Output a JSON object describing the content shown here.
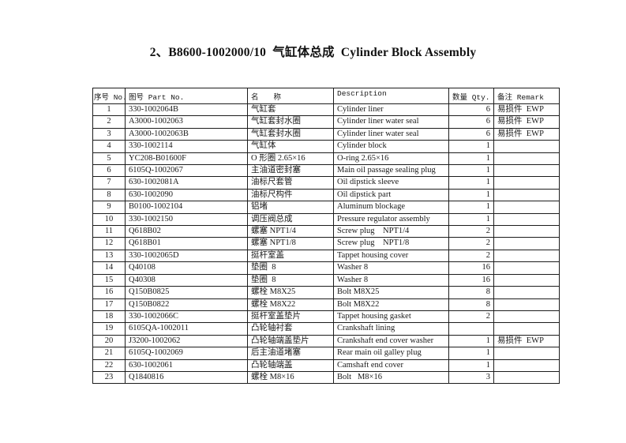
{
  "page": {
    "title": "2、B8600-1002000/10  气缸体总成  Cylinder Block Assembly"
  },
  "table": {
    "headers": {
      "no": "序号 No.",
      "part_no": "图号 Part No.",
      "name": "名　　称",
      "description": "Description",
      "qty": "数量 Qty.",
      "remark": "备注 Remark"
    },
    "rows": [
      {
        "no": "1",
        "part_no": "330-1002064B",
        "name": "气缸套",
        "description": "Cylinder liner",
        "qty": "6",
        "remark": "易损件  EWP"
      },
      {
        "no": "2",
        "part_no": "A3000-1002063",
        "name": "气缸套封水圈",
        "description": "Cylinder liner water seal",
        "qty": "6",
        "remark": "易损件  EWP"
      },
      {
        "no": "3",
        "part_no": "A3000-1002063B",
        "name": "气缸套封水圈",
        "description": "Cylinder liner water seal",
        "qty": "6",
        "remark": "易损件  EWP"
      },
      {
        "no": "4",
        "part_no": "330-1002114",
        "name": "气缸体",
        "description": "Cylinder block",
        "qty": "1",
        "remark": ""
      },
      {
        "no": "5",
        "part_no": "YC208-B01600F",
        "name": "O 形圈 2.65×16",
        "description": "O-ring 2.65×16",
        "qty": "1",
        "remark": ""
      },
      {
        "no": "6",
        "part_no": "6105Q-1002067",
        "name": "主油道密封塞",
        "description": "Main oil passage sealing plug",
        "qty": "1",
        "remark": ""
      },
      {
        "no": "7",
        "part_no": "630-1002081A",
        "name": "油标尺套管",
        "description": "Oil dipstick sleeve",
        "qty": "1",
        "remark": ""
      },
      {
        "no": "8",
        "part_no": "630-1002090",
        "name": "油标尺构件",
        "description": "Oil dipstick part",
        "qty": "1",
        "remark": ""
      },
      {
        "no": "9",
        "part_no": "B0100-1002104",
        "name": "铝堵",
        "description": "Aluminum blockage",
        "qty": "1",
        "remark": ""
      },
      {
        "no": "10",
        "part_no": "330-1002150",
        "name": "调压阀总成",
        "description": "Pressure regulator assembly",
        "qty": "1",
        "remark": ""
      },
      {
        "no": "11",
        "part_no": "Q618B02",
        "name": "螺塞 NPT1/4",
        "description": "Screw plug    NPT1/4",
        "qty": "2",
        "remark": ""
      },
      {
        "no": "12",
        "part_no": "Q618B01",
        "name": "螺塞 NPT1/8",
        "description": "Screw plug    NPT1/8",
        "qty": "2",
        "remark": ""
      },
      {
        "no": "13",
        "part_no": "330-1002065D",
        "name": "挺杆室盖",
        "description": "Tappet housing cover",
        "qty": "2",
        "remark": ""
      },
      {
        "no": "14",
        "part_no": "Q40108",
        "name": "垫圈  8",
        "description": "Washer 8",
        "qty": "16",
        "remark": ""
      },
      {
        "no": "15",
        "part_no": "Q40308",
        "name": "垫圈  8",
        "description": "Washer 8",
        "qty": "16",
        "remark": ""
      },
      {
        "no": "16",
        "part_no": "Q150B0825",
        "name": "螺栓 M8X25",
        "description": "Bolt M8X25",
        "qty": "8",
        "remark": ""
      },
      {
        "no": "17",
        "part_no": "Q150B0822",
        "name": "螺栓 M8X22",
        "description": "Bolt M8X22",
        "qty": "8",
        "remark": ""
      },
      {
        "no": "18",
        "part_no": "330-1002066C",
        "name": "挺杆室盖垫片",
        "description": "Tappet housing gasket",
        "qty": "2",
        "remark": ""
      },
      {
        "no": "19",
        "part_no": "6105QA-1002011",
        "name": "凸轮轴衬套",
        "description": "Crankshaft lining",
        "qty": "",
        "remark": ""
      },
      {
        "no": "20",
        "part_no": "J3200-1002062",
        "name": "凸轮轴端盖垫片",
        "description": "Crankshaft end cover washer",
        "qty": "1",
        "remark": "易损件  EWP"
      },
      {
        "no": "21",
        "part_no": "6105Q-1002069",
        "name": "后主油道堵塞",
        "description": "Rear main oil galley plug",
        "qty": "1",
        "remark": ""
      },
      {
        "no": "22",
        "part_no": "630-1002061",
        "name": "凸轮轴端盖",
        "description": "Camshaft end cover",
        "qty": "1",
        "remark": ""
      },
      {
        "no": "23",
        "part_no": "Q1840816",
        "name": "螺栓 M8×16",
        "description": "Bolt   M8×16",
        "qty": "3",
        "remark": ""
      }
    ]
  }
}
